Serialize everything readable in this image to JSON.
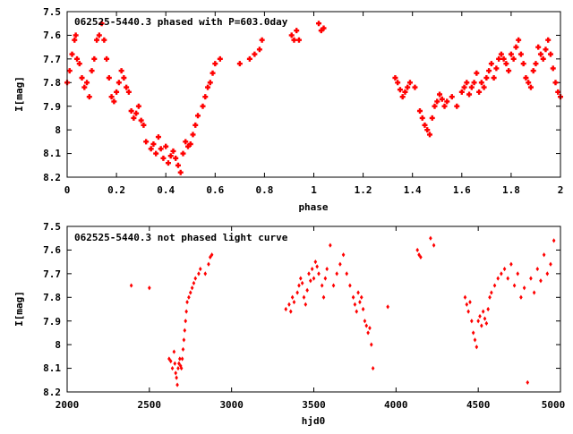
{
  "chart_data": [
    {
      "type": "scatter",
      "title": "062525-5440.3 phased with P=603.0day",
      "xlabel": "phase",
      "ylabel": "I[mag]",
      "xlim": [
        0,
        2
      ],
      "ylim": [
        8.2,
        7.5
      ],
      "y_inverted": true,
      "grid": false,
      "marker_color": "#ff0000",
      "x_ticks": [
        "0",
        "0.2",
        "0.4",
        "0.6",
        "0.8",
        "1",
        "1.2",
        "1.4",
        "1.6",
        "1.8",
        "2"
      ],
      "y_ticks": [
        "7.5",
        "7.6",
        "7.7",
        "7.8",
        "7.9",
        "8",
        "8.1",
        "8.2"
      ],
      "series": [
        {
          "x": [
            0.0,
            0.01,
            0.02,
            0.03,
            0.035,
            0.04,
            0.05,
            0.06,
            0.07,
            0.08,
            0.09,
            0.1,
            0.11,
            0.12,
            0.13,
            0.14,
            0.15,
            0.16,
            0.17,
            0.18,
            0.19,
            0.2,
            0.21,
            0.22,
            0.23,
            0.24,
            0.25,
            0.26,
            0.27,
            0.28,
            0.29,
            0.3,
            0.31,
            0.32,
            0.34,
            0.35,
            0.36,
            0.37,
            0.38,
            0.39,
            0.4,
            0.41,
            0.42,
            0.43,
            0.44,
            0.45,
            0.46,
            0.47,
            0.48,
            0.49,
            0.5,
            0.51,
            0.52,
            0.53,
            0.55,
            0.56,
            0.57,
            0.58,
            0.59,
            0.6,
            0.62,
            0.7,
            0.74,
            0.76,
            0.78,
            0.79,
            0.91,
            0.92,
            0.93,
            0.94,
            1.02,
            1.03,
            1.04,
            1.33,
            1.34,
            1.35,
            1.36,
            1.37,
            1.38,
            1.39,
            1.41,
            1.43,
            1.44,
            1.45,
            1.46,
            1.47,
            1.48,
            1.49,
            1.5,
            1.51,
            1.52,
            1.53,
            1.54,
            1.56,
            1.58,
            1.6,
            1.61,
            1.62,
            1.63,
            1.64,
            1.65,
            1.66,
            1.67,
            1.68,
            1.69,
            1.7,
            1.71,
            1.72,
            1.73,
            1.74,
            1.75,
            1.76,
            1.77,
            1.78,
            1.79,
            1.8,
            1.81,
            1.82,
            1.83,
            1.84,
            1.85,
            1.86,
            1.87,
            1.88,
            1.89,
            1.9,
            1.91,
            1.92,
            1.93,
            1.94,
            1.95,
            1.96,
            1.97,
            1.98,
            1.99,
            2.0
          ],
          "y": [
            7.8,
            7.75,
            7.68,
            7.62,
            7.6,
            7.7,
            7.72,
            7.78,
            7.82,
            7.8,
            7.86,
            7.75,
            7.7,
            7.62,
            7.6,
            7.55,
            7.62,
            7.7,
            7.78,
            7.86,
            7.88,
            7.84,
            7.8,
            7.75,
            7.78,
            7.82,
            7.84,
            7.92,
            7.95,
            7.93,
            7.9,
            7.96,
            7.98,
            8.05,
            8.08,
            8.06,
            8.1,
            8.03,
            8.08,
            8.12,
            8.07,
            8.14,
            8.11,
            8.09,
            8.12,
            8.15,
            8.18,
            8.1,
            8.05,
            8.07,
            8.06,
            8.02,
            7.98,
            7.94,
            7.9,
            7.86,
            7.82,
            7.8,
            7.76,
            7.72,
            7.7,
            7.72,
            7.7,
            7.68,
            7.66,
            7.62,
            7.6,
            7.62,
            7.58,
            7.62,
            7.55,
            7.58,
            7.57,
            7.78,
            7.8,
            7.83,
            7.86,
            7.84,
            7.82,
            7.8,
            7.82,
            7.92,
            7.95,
            7.98,
            8.0,
            8.02,
            7.95,
            7.9,
            7.88,
            7.85,
            7.87,
            7.9,
            7.88,
            7.86,
            7.9,
            7.84,
            7.82,
            7.8,
            7.85,
            7.82,
            7.8,
            7.76,
            7.84,
            7.8,
            7.82,
            7.78,
            7.75,
            7.72,
            7.78,
            7.74,
            7.7,
            7.68,
            7.7,
            7.72,
            7.75,
            7.68,
            7.7,
            7.65,
            7.62,
            7.68,
            7.72,
            7.78,
            7.8,
            7.82,
            7.75,
            7.72,
            7.65,
            7.68,
            7.7,
            7.66,
            7.62,
            7.68,
            7.74,
            7.8,
            7.84,
            7.86
          ]
        }
      ]
    },
    {
      "type": "scatter",
      "title": "062525-5440.3 not phased light curve",
      "xlabel": "hjd0",
      "ylabel": "I[mag]",
      "xlim": [
        2000,
        5000
      ],
      "ylim": [
        8.2,
        7.5
      ],
      "y_inverted": true,
      "grid": false,
      "marker_color": "#ff0000",
      "x_ticks": [
        "2000",
        "2500",
        "3000",
        "3500",
        "4000",
        "4500",
        "5000"
      ],
      "y_ticks": [
        "7.5",
        "7.6",
        "7.7",
        "7.8",
        "7.9",
        "8",
        "8.1",
        "8.2"
      ],
      "series": [
        {
          "x": [
            2390,
            2500,
            2620,
            2630,
            2640,
            2650,
            2655,
            2660,
            2665,
            2670,
            2675,
            2680,
            2685,
            2690,
            2695,
            2700,
            2705,
            2710,
            2715,
            2720,
            2725,
            2730,
            2740,
            2750,
            2760,
            2770,
            2780,
            2800,
            2810,
            2840,
            2860,
            2870,
            2880,
            3330,
            3350,
            3360,
            3370,
            3380,
            3400,
            3410,
            3420,
            3430,
            3440,
            3450,
            3460,
            3470,
            3480,
            3490,
            3500,
            3510,
            3520,
            3530,
            3550,
            3560,
            3570,
            3580,
            3600,
            3620,
            3640,
            3660,
            3680,
            3700,
            3720,
            3740,
            3750,
            3760,
            3770,
            3780,
            3790,
            3800,
            3810,
            3820,
            3830,
            3840,
            3850,
            3860,
            3950,
            4130,
            4140,
            4150,
            4210,
            4230,
            4420,
            4430,
            4440,
            4450,
            4460,
            4470,
            4480,
            4490,
            4500,
            4510,
            4520,
            4530,
            4540,
            4550,
            4560,
            4570,
            4580,
            4600,
            4620,
            4640,
            4660,
            4680,
            4700,
            4720,
            4740,
            4760,
            4780,
            4800,
            4820,
            4840,
            4860,
            4880,
            4900,
            4920,
            4940,
            4960
          ],
          "y": [
            7.75,
            7.76,
            8.06,
            8.07,
            8.1,
            8.03,
            8.08,
            8.12,
            8.14,
            8.17,
            8.1,
            8.08,
            8.06,
            8.09,
            8.1,
            8.06,
            8.02,
            7.98,
            7.94,
            7.9,
            7.86,
            7.82,
            7.8,
            7.78,
            7.76,
            7.74,
            7.72,
            7.7,
            7.68,
            7.7,
            7.66,
            7.63,
            7.62,
            7.85,
            7.83,
            7.86,
            7.8,
            7.82,
            7.78,
            7.75,
            7.72,
            7.74,
            7.8,
            7.83,
            7.77,
            7.7,
            7.73,
            7.68,
            7.72,
            7.65,
            7.67,
            7.7,
            7.75,
            7.8,
            7.72,
            7.68,
            7.58,
            7.75,
            7.7,
            7.66,
            7.62,
            7.7,
            7.75,
            7.8,
            7.83,
            7.86,
            7.78,
            7.82,
            7.8,
            7.85,
            7.9,
            7.92,
            7.95,
            7.93,
            8.0,
            8.1,
            7.84,
            7.6,
            7.62,
            7.63,
            7.55,
            7.58,
            7.8,
            7.83,
            7.86,
            7.82,
            7.9,
            7.95,
            7.98,
            8.01,
            7.9,
            7.88,
            7.92,
            7.86,
            7.89,
            7.91,
            7.85,
            7.8,
            7.78,
            7.75,
            7.72,
            7.7,
            7.68,
            7.72,
            7.66,
            7.75,
            7.7,
            7.8,
            7.76,
            8.16,
            7.72,
            7.78,
            7.68,
            7.73,
            7.62,
            7.7,
            7.66,
            7.56
          ]
        }
      ]
    }
  ]
}
